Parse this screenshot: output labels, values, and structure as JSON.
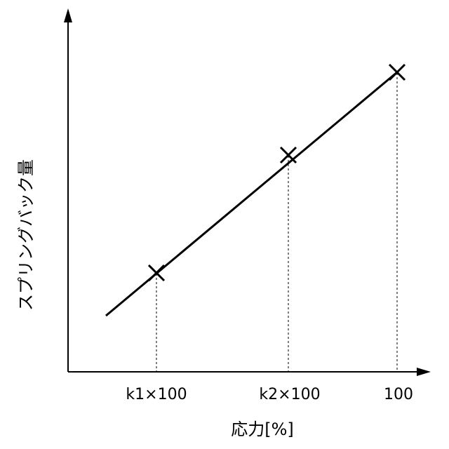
{
  "y_axis_label": "スプリングバック量",
  "x_axis_label": "応力[%]",
  "x_tick_labels": [
    "k1×100",
    "k2×100",
    "100"
  ]
}
